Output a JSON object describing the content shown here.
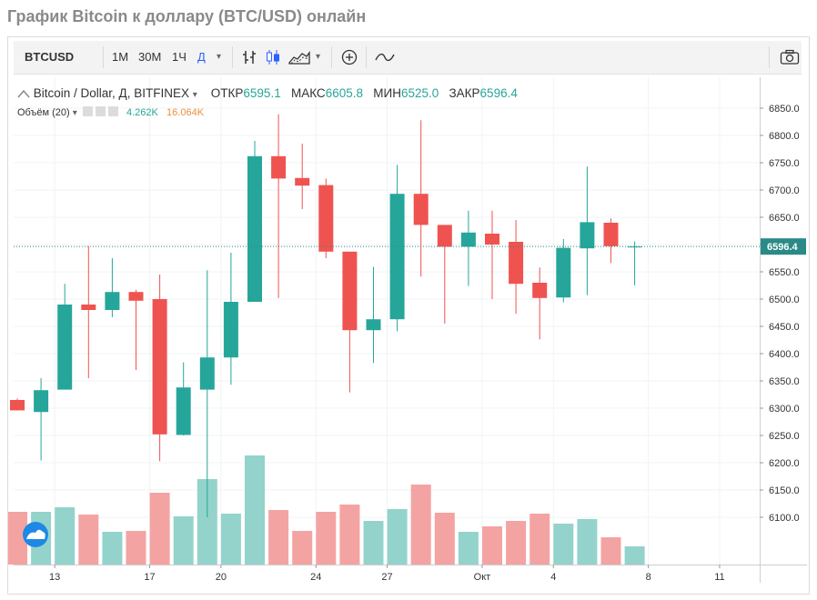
{
  "page": {
    "title": "График Bitcoin к доллару (BTC/USD) онлайн"
  },
  "toolbar": {
    "symbol": "BTCUSD",
    "intervals": [
      "1М",
      "30М",
      "1Ч",
      "Д"
    ],
    "active_interval": "Д"
  },
  "legend": {
    "title": "Bitcoin / Dollar, Д, BITFINEX",
    "open_label": "ОТКР",
    "open": "6595.1",
    "high_label": "МАКС",
    "high": "6605.8",
    "low_label": "МИН",
    "low": "6525.0",
    "close_label": "ЗАКР",
    "close": "6596.4",
    "volume_label": "Объём (20)",
    "volume_1": "4.262K",
    "volume_2": "16.064K"
  },
  "colors": {
    "up": "#26a69a",
    "down": "#ef5350",
    "up_volume": "#93d3cb",
    "down_volume": "#f4a3a3",
    "price_line": "#2a8a87"
  },
  "chart_data": {
    "type": "candlestick",
    "symbol": "BTCUSD",
    "title": "Bitcoin / Dollar, Д, BITFINEX",
    "interval": "Д",
    "ylim": [
      6050,
      6880
    ],
    "y_ticks": [
      6100,
      6150,
      6200,
      6250,
      6300,
      6350,
      6400,
      6450,
      6500,
      6550,
      6600,
      6650,
      6700,
      6750,
      6800,
      6850
    ],
    "x_ticks": [
      {
        "label": "13",
        "index": 1.5
      },
      {
        "label": "17",
        "index": 5.5
      },
      {
        "label": "20",
        "index": 8.5
      },
      {
        "label": "24",
        "index": 12.5
      },
      {
        "label": "27",
        "index": 15.5
      },
      {
        "label": "Окт",
        "index": 19.5
      },
      {
        "label": "4",
        "index": 22.5
      },
      {
        "label": "8",
        "index": 26.5
      },
      {
        "label": "11",
        "index": 29.5
      }
    ],
    "last_price": 6596.4,
    "last_price_label": "6596.4",
    "candles": [
      {
        "o": 6315,
        "h": 6318,
        "l": 6296,
        "c": 6296,
        "v": 0.58
      },
      {
        "o": 6293,
        "h": 6355,
        "l": 6204,
        "c": 6333,
        "v": 0.58
      },
      {
        "o": 6334,
        "h": 6528,
        "l": 6334,
        "c": 6490,
        "v": 0.63
      },
      {
        "o": 6490,
        "h": 6597,
        "l": 6355,
        "c": 6480,
        "v": 0.55
      },
      {
        "o": 6480,
        "h": 6575,
        "l": 6467,
        "c": 6513,
        "v": 0.36
      },
      {
        "o": 6513,
        "h": 6517,
        "l": 6370,
        "c": 6497,
        "v": 0.37
      },
      {
        "o": 6500,
        "h": 6545,
        "l": 6203,
        "c": 6252,
        "v": 0.79
      },
      {
        "o": 6251,
        "h": 6384,
        "l": 6250,
        "c": 6338,
        "v": 0.53
      },
      {
        "o": 6334,
        "h": 6553,
        "l": 6100,
        "c": 6393,
        "v": 0.94
      },
      {
        "o": 6393,
        "h": 6585,
        "l": 6343,
        "c": 6495,
        "v": 0.56
      },
      {
        "o": 6495,
        "h": 6790,
        "l": 6495,
        "c": 6762,
        "v": 1.2
      },
      {
        "o": 6762,
        "h": 6839,
        "l": 6502,
        "c": 6721,
        "v": 0.6
      },
      {
        "o": 6722,
        "h": 6785,
        "l": 6665,
        "c": 6708,
        "v": 0.37
      },
      {
        "o": 6709,
        "h": 6721,
        "l": 6575,
        "c": 6587,
        "v": 0.58
      },
      {
        "o": 6587,
        "h": 6587,
        "l": 6329,
        "c": 6443,
        "v": 0.66
      },
      {
        "o": 6443,
        "h": 6559,
        "l": 6383,
        "c": 6463,
        "v": 0.48
      },
      {
        "o": 6463,
        "h": 6746,
        "l": 6441,
        "c": 6693,
        "v": 0.61
      },
      {
        "o": 6693,
        "h": 6828,
        "l": 6541,
        "c": 6636,
        "v": 0.88
      },
      {
        "o": 6636,
        "h": 6636,
        "l": 6455,
        "c": 6596,
        "v": 0.57
      },
      {
        "o": 6596,
        "h": 6662,
        "l": 6524,
        "c": 6622,
        "v": 0.36
      },
      {
        "o": 6620,
        "h": 6662,
        "l": 6500,
        "c": 6600,
        "v": 0.42
      },
      {
        "o": 6605,
        "h": 6645,
        "l": 6473,
        "c": 6528,
        "v": 0.48
      },
      {
        "o": 6530,
        "h": 6558,
        "l": 6426,
        "c": 6502,
        "v": 0.56
      },
      {
        "o": 6503,
        "h": 6610,
        "l": 6494,
        "c": 6594,
        "v": 0.45
      },
      {
        "o": 6593,
        "h": 6743,
        "l": 6507,
        "c": 6641,
        "v": 0.5
      },
      {
        "o": 6640,
        "h": 6648,
        "l": 6566,
        "c": 6597,
        "v": 0.3
      },
      {
        "o": 6595.1,
        "h": 6605.8,
        "l": 6525.0,
        "c": 6596.4,
        "v": 0.2
      }
    ]
  }
}
